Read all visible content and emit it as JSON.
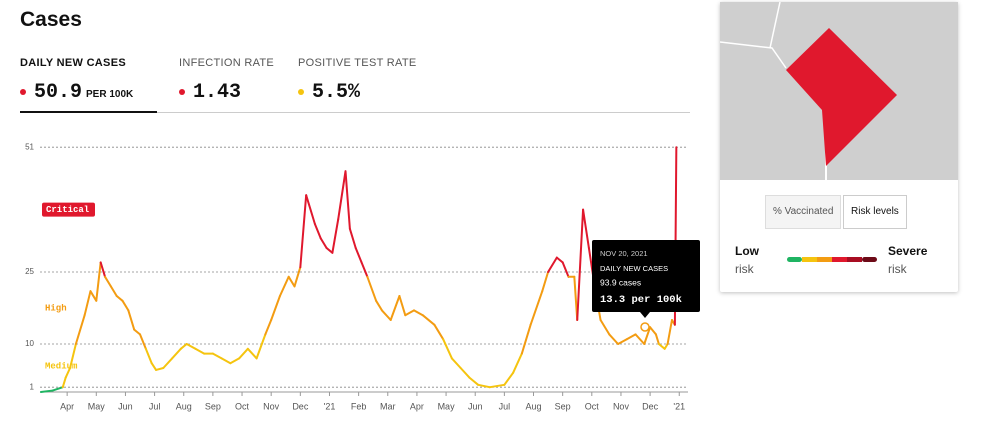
{
  "header": {
    "title": "Cases"
  },
  "metrics": [
    {
      "label": "DAILY NEW CASES",
      "value": "50.9",
      "unit": "PER 100K",
      "color": "#e0182d"
    },
    {
      "label": "INFECTION RATE",
      "value": "1.43",
      "color": "#e0182d"
    },
    {
      "label": "POSITIVE TEST RATE",
      "value": "5.5%",
      "color": "#f5c40f"
    }
  ],
  "chart_data": {
    "type": "line",
    "x": [
      0.1,
      0.5,
      0.85,
      0.95,
      1.1,
      1.3,
      1.6,
      1.8,
      2.0,
      2.15,
      2.3,
      2.5,
      2.7,
      2.9,
      3.1,
      3.3,
      3.5,
      3.7,
      3.9,
      4.05,
      4.3,
      4.6,
      4.9,
      5.1,
      5.4,
      5.7,
      6.0,
      6.3,
      6.6,
      6.9,
      7.2,
      7.5,
      7.8,
      8.0,
      8.3,
      8.6,
      8.8,
      9.0,
      9.2,
      9.5,
      9.7,
      9.9,
      10.1,
      10.3,
      10.55,
      10.7,
      10.9,
      11.1,
      11.3,
      11.6,
      11.8,
      12.1,
      12.4,
      12.6,
      12.9,
      13.2,
      13.6,
      13.9,
      14.2,
      14.5,
      14.8,
      15.1,
      15.5,
      16.0,
      16.3,
      16.6,
      16.9,
      17.3,
      17.5,
      17.8,
      18.0,
      18.2,
      18.4,
      18.5,
      18.7,
      18.9,
      19.1,
      19.3,
      19.6,
      19.9,
      20.2,
      20.5,
      20.8,
      21.0,
      21.2,
      21.3,
      21.5,
      21.6,
      21.75,
      21.85,
      21.9
    ],
    "series": [
      {
        "values": [
          0,
          0.3,
          1,
          3,
          5,
          10,
          16,
          21,
          19,
          27,
          24,
          22,
          20,
          19,
          17,
          13,
          12,
          9,
          6,
          4.6,
          5,
          7,
          9,
          10,
          9,
          8,
          8,
          7,
          6,
          7,
          9,
          7,
          12,
          15,
          20,
          24,
          22,
          26,
          41,
          35,
          32,
          30,
          29,
          36,
          46,
          34,
          30,
          27,
          24,
          19,
          17,
          15,
          20,
          16,
          17,
          16,
          14,
          11,
          7,
          5,
          3,
          1.5,
          1,
          1.5,
          4,
          8,
          14,
          21,
          25,
          28,
          27,
          24,
          24,
          15,
          38,
          30,
          22,
          15,
          12,
          10,
          11,
          12,
          10,
          13.5,
          12,
          10,
          9,
          10,
          15,
          14,
          51
        ]
      }
    ],
    "levels": [
      {
        "from": 0,
        "color": "#1fb462"
      },
      {
        "from": 1,
        "label": "Medium",
        "color": "#f5c40f"
      },
      {
        "from": 10,
        "label": "High",
        "color": "#f39c12"
      },
      {
        "from": 25,
        "label": "Critical",
        "color": "#e0182d"
      }
    ],
    "xlim": [
      0,
      22.3
    ],
    "xticks": [
      {
        "value": 1,
        "label": "Apr"
      },
      {
        "value": 2,
        "label": "May"
      },
      {
        "value": 3,
        "label": "Jun"
      },
      {
        "value": 4,
        "label": "Jul"
      },
      {
        "value": 5,
        "label": "Aug"
      },
      {
        "value": 6,
        "label": "Sep"
      },
      {
        "value": 7,
        "label": "Oct"
      },
      {
        "value": 8,
        "label": "Nov"
      },
      {
        "value": 9,
        "label": "Dec"
      },
      {
        "value": 10,
        "label": "'21"
      },
      {
        "value": 11,
        "label": "Feb"
      },
      {
        "value": 12,
        "label": "Mar"
      },
      {
        "value": 13,
        "label": "Apr"
      },
      {
        "value": 14,
        "label": "May"
      },
      {
        "value": 15,
        "label": "Jun"
      },
      {
        "value": 16,
        "label": "Jul"
      },
      {
        "value": 17,
        "label": "Aug"
      },
      {
        "value": 18,
        "label": "Sep"
      },
      {
        "value": 19,
        "label": "Oct"
      },
      {
        "value": 20,
        "label": "Nov"
      },
      {
        "value": 21,
        "label": "Dec"
      },
      {
        "value": 22,
        "label": "'21"
      }
    ],
    "ylim": [
      0,
      52
    ],
    "yticks": [
      1,
      10,
      25,
      51
    ],
    "grid": true
  },
  "tooltip": {
    "date": "NOV 20, 2021",
    "label": "DAILY NEW CASES",
    "cases": "93.9 cases",
    "rate": "13.3 per 100k"
  },
  "map": {
    "buttons": [
      "% Vaccinated",
      "Risk levels"
    ]
  },
  "legend": {
    "low": "Low",
    "low_sub": "risk",
    "high": "Severe",
    "high_sub": "risk",
    "colors": [
      "#1fb462",
      "#f5c40f",
      "#f39c12",
      "#e0182d",
      "#a80d22",
      "#6d0a17"
    ]
  }
}
